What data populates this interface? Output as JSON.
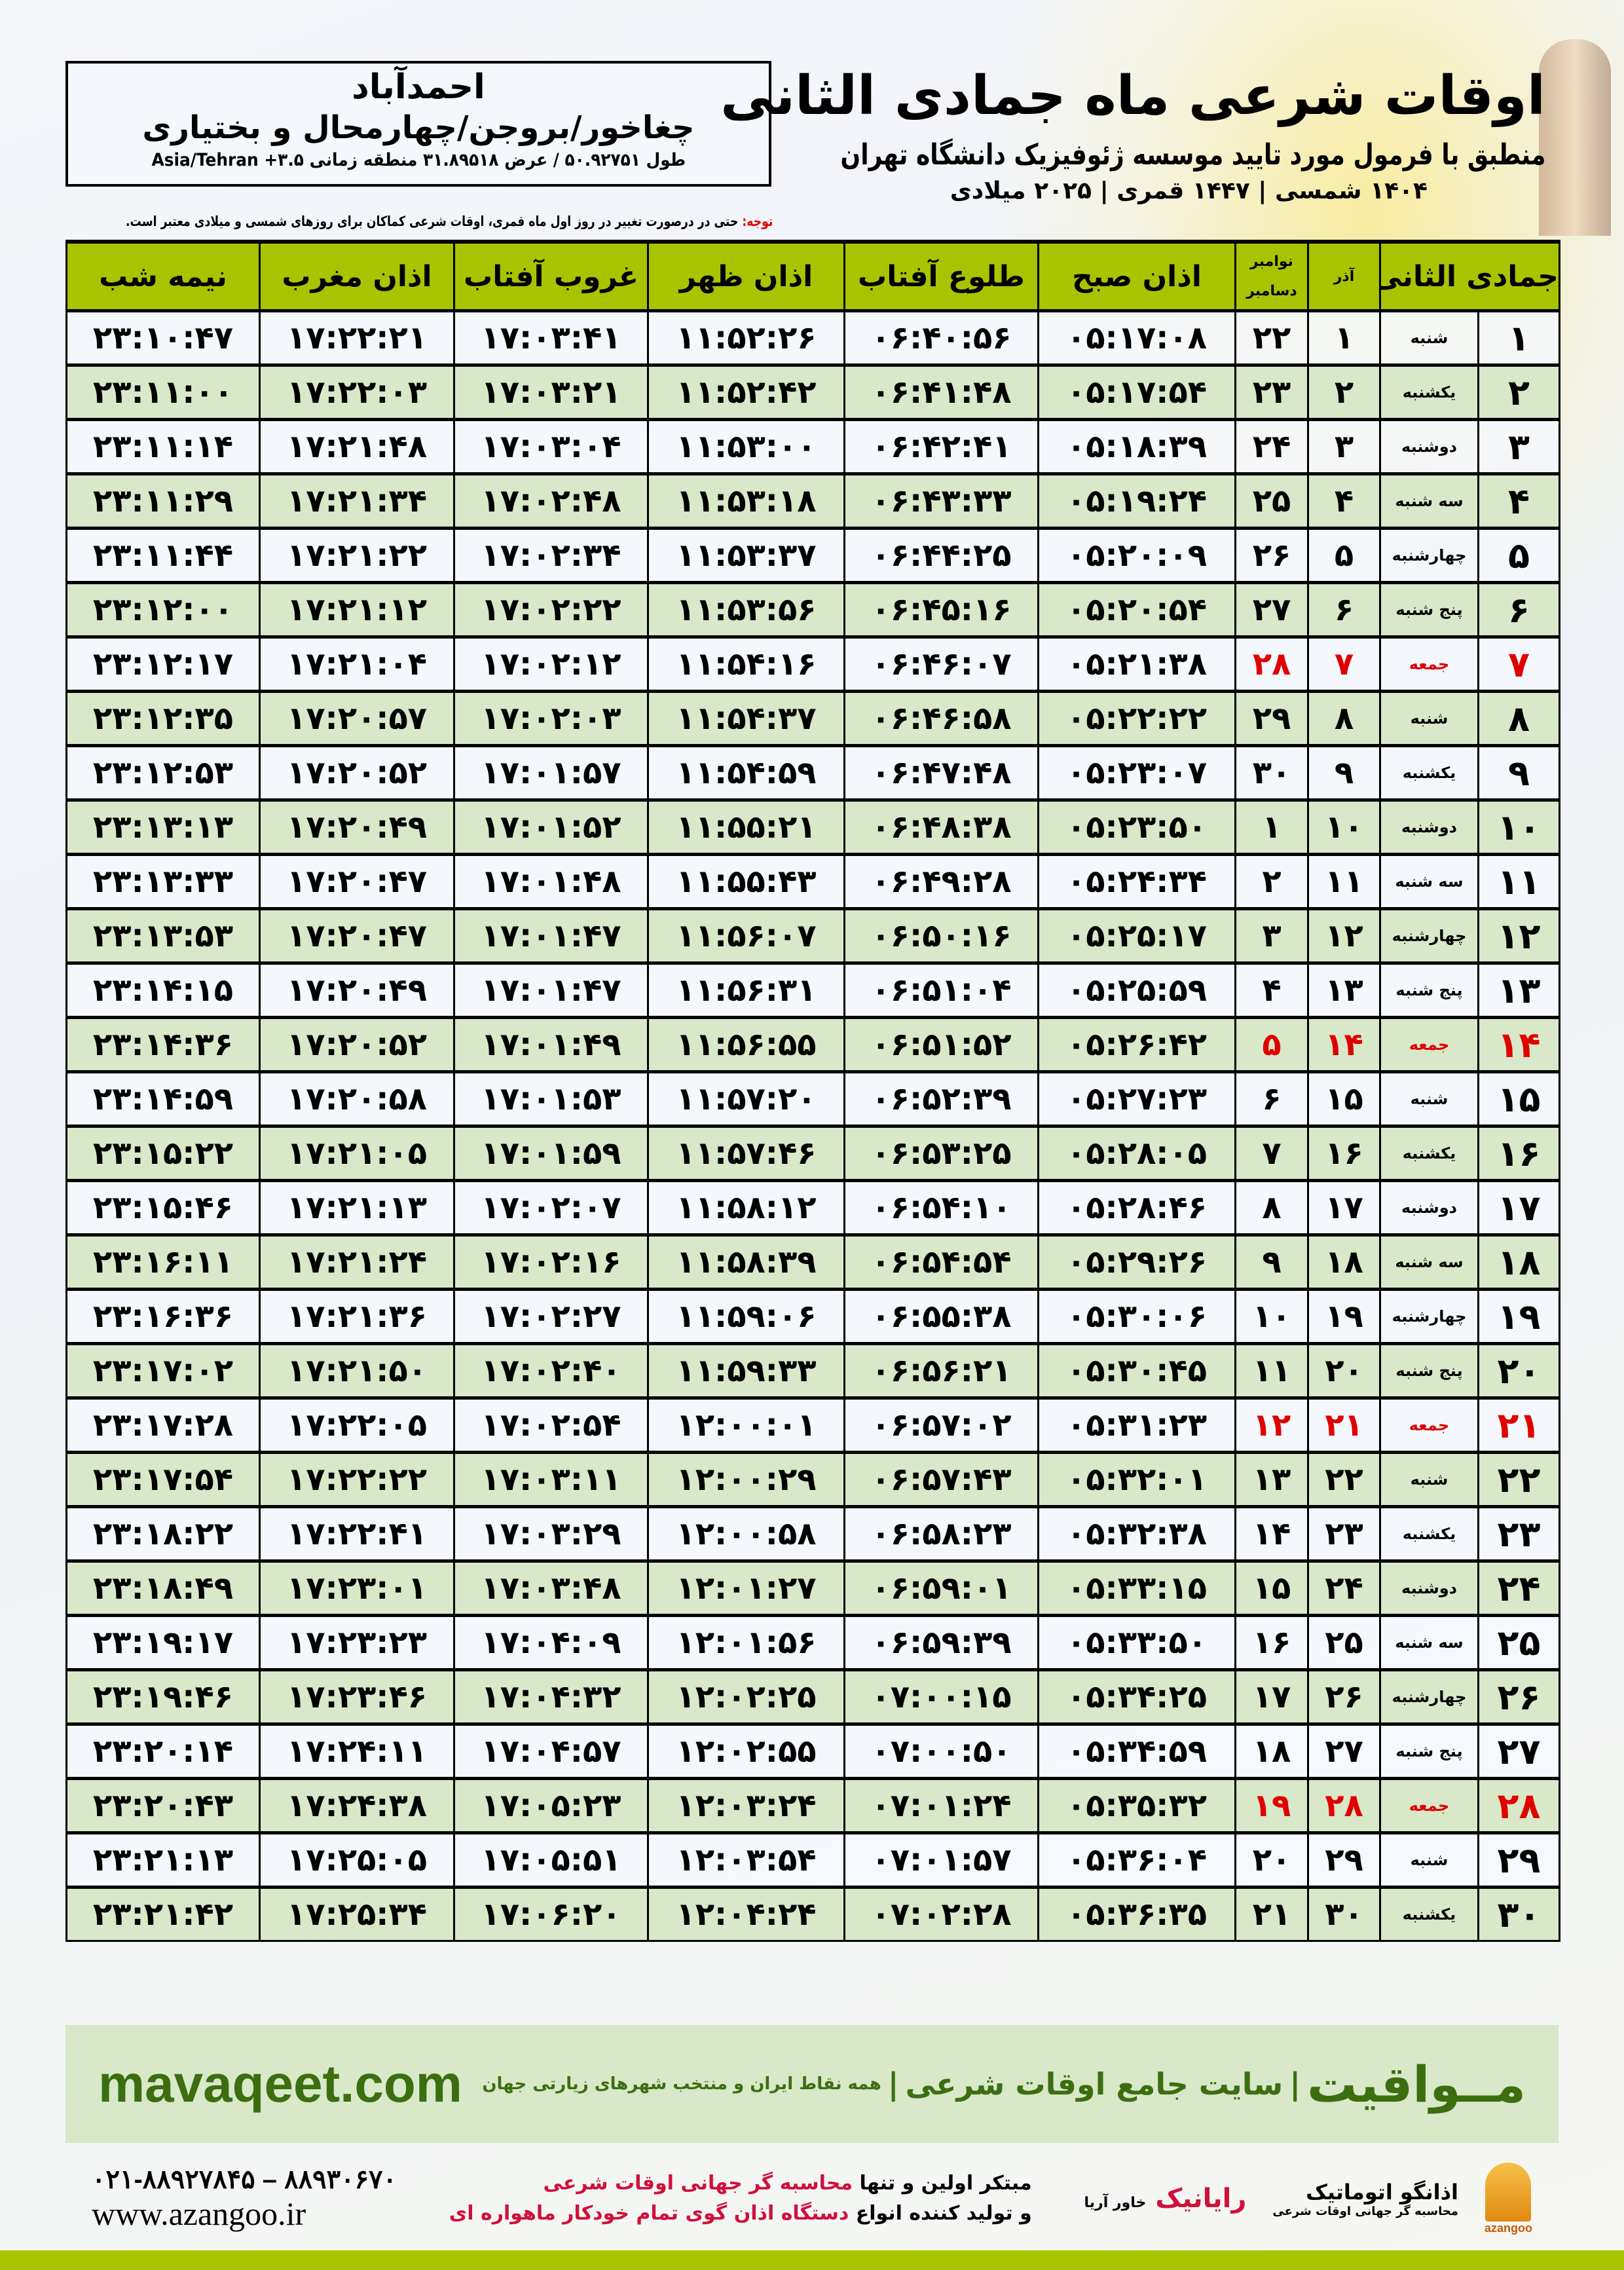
{
  "location": {
    "city": "احمدآباد",
    "region": "چغاخور/بروجن/چهارمحال و بختیاری",
    "coords": "طول ۵۰.۹۲۷۵۱ / عرض ۳۱.۸۹۵۱۸ منطقه زمانی ۳.۵+ Asia/Tehran"
  },
  "header": {
    "title": "اوقات شرعی ماه جمادی الثانی",
    "subtitle": "منطبق با فرمول مورد تایید موسسه ژئوفیزیک دانشگاه تهران",
    "years": "۱۴۰۴ شمسی | ۱۴۴۷ قمری | ۲۰۲۵ میلادی"
  },
  "note": {
    "label": "توجه:",
    "text": " حتی در درصورت تغییر در روز اول ماه قمری، اوقات شرعی کماکان برای روزهای شمسی و میلادی معتبر است."
  },
  "table": {
    "headers": {
      "hijri": "جمادی الثانی",
      "azar": "آذر",
      "gregorian_top": "نوامبر",
      "gregorian_bottom": "دسامبر",
      "fajr": "اذان صبح",
      "sunrise": "طلوع آفتاب",
      "dhuhr": "اذان ظهر",
      "sunset": "غروب آفتاب",
      "maghrib": "اذان مغرب",
      "midnight": "نیمه شب"
    },
    "friday_color": "#e00000",
    "header_color": "#a8c400",
    "rows": [
      [
        "۱",
        "شنبه",
        "۱",
        "۲۲",
        "۰۵:۱۷:۰۸",
        "۰۶:۴۰:۵۶",
        "۱۱:۵۲:۲۶",
        "۱۷:۰۳:۴۱",
        "۱۷:۲۲:۲۱",
        "۲۳:۱۰:۴۷"
      ],
      [
        "۲",
        "یکشنبه",
        "۲",
        "۲۳",
        "۰۵:۱۷:۵۴",
        "۰۶:۴۱:۴۸",
        "۱۱:۵۲:۴۲",
        "۱۷:۰۳:۲۱",
        "۱۷:۲۲:۰۳",
        "۲۳:۱۱:۰۰"
      ],
      [
        "۳",
        "دوشنبه",
        "۳",
        "۲۴",
        "۰۵:۱۸:۳۹",
        "۰۶:۴۲:۴۱",
        "۱۱:۵۳:۰۰",
        "۱۷:۰۳:۰۴",
        "۱۷:۲۱:۴۸",
        "۲۳:۱۱:۱۴"
      ],
      [
        "۴",
        "سه شنبه",
        "۴",
        "۲۵",
        "۰۵:۱۹:۲۴",
        "۰۶:۴۳:۳۳",
        "۱۱:۵۳:۱۸",
        "۱۷:۰۲:۴۸",
        "۱۷:۲۱:۳۴",
        "۲۳:۱۱:۲۹"
      ],
      [
        "۵",
        "چهارشنبه",
        "۵",
        "۲۶",
        "۰۵:۲۰:۰۹",
        "۰۶:۴۴:۲۵",
        "۱۱:۵۳:۳۷",
        "۱۷:۰۲:۳۴",
        "۱۷:۲۱:۲۲",
        "۲۳:۱۱:۴۴"
      ],
      [
        "۶",
        "پنج شنبه",
        "۶",
        "۲۷",
        "۰۵:۲۰:۵۴",
        "۰۶:۴۵:۱۶",
        "۱۱:۵۳:۵۶",
        "۱۷:۰۲:۲۲",
        "۱۷:۲۱:۱۲",
        "۲۳:۱۲:۰۰"
      ],
      [
        "۷",
        "جمعه",
        "۷",
        "۲۸",
        "۰۵:۲۱:۳۸",
        "۰۶:۴۶:۰۷",
        "۱۱:۵۴:۱۶",
        "۱۷:۰۲:۱۲",
        "۱۷:۲۱:۰۴",
        "۲۳:۱۲:۱۷"
      ],
      [
        "۸",
        "شنبه",
        "۸",
        "۲۹",
        "۰۵:۲۲:۲۲",
        "۰۶:۴۶:۵۸",
        "۱۱:۵۴:۳۷",
        "۱۷:۰۲:۰۳",
        "۱۷:۲۰:۵۷",
        "۲۳:۱۲:۳۵"
      ],
      [
        "۹",
        "یکشنبه",
        "۹",
        "۳۰",
        "۰۵:۲۳:۰۷",
        "۰۶:۴۷:۴۸",
        "۱۱:۵۴:۵۹",
        "۱۷:۰۱:۵۷",
        "۱۷:۲۰:۵۲",
        "۲۳:۱۲:۵۳"
      ],
      [
        "۱۰",
        "دوشنبه",
        "۱۰",
        "۱",
        "۰۵:۲۳:۵۰",
        "۰۶:۴۸:۳۸",
        "۱۱:۵۵:۲۱",
        "۱۷:۰۱:۵۲",
        "۱۷:۲۰:۴۹",
        "۲۳:۱۳:۱۳"
      ],
      [
        "۱۱",
        "سه شنبه",
        "۱۱",
        "۲",
        "۰۵:۲۴:۳۴",
        "۰۶:۴۹:۲۸",
        "۱۱:۵۵:۴۳",
        "۱۷:۰۱:۴۸",
        "۱۷:۲۰:۴۷",
        "۲۳:۱۳:۳۳"
      ],
      [
        "۱۲",
        "چهارشنبه",
        "۱۲",
        "۳",
        "۰۵:۲۵:۱۷",
        "۰۶:۵۰:۱۶",
        "۱۱:۵۶:۰۷",
        "۱۷:۰۱:۴۷",
        "۱۷:۲۰:۴۷",
        "۲۳:۱۳:۵۳"
      ],
      [
        "۱۳",
        "پنج شنبه",
        "۱۳",
        "۴",
        "۰۵:۲۵:۵۹",
        "۰۶:۵۱:۰۴",
        "۱۱:۵۶:۳۱",
        "۱۷:۰۱:۴۷",
        "۱۷:۲۰:۴۹",
        "۲۳:۱۴:۱۵"
      ],
      [
        "۱۴",
        "جمعه",
        "۱۴",
        "۵",
        "۰۵:۲۶:۴۲",
        "۰۶:۵۱:۵۲",
        "۱۱:۵۶:۵۵",
        "۱۷:۰۱:۴۹",
        "۱۷:۲۰:۵۲",
        "۲۳:۱۴:۳۶"
      ],
      [
        "۱۵",
        "شنبه",
        "۱۵",
        "۶",
        "۰۵:۲۷:۲۳",
        "۰۶:۵۲:۳۹",
        "۱۱:۵۷:۲۰",
        "۱۷:۰۱:۵۳",
        "۱۷:۲۰:۵۸",
        "۲۳:۱۴:۵۹"
      ],
      [
        "۱۶",
        "یکشنبه",
        "۱۶",
        "۷",
        "۰۵:۲۸:۰۵",
        "۰۶:۵۳:۲۵",
        "۱۱:۵۷:۴۶",
        "۱۷:۰۱:۵۹",
        "۱۷:۲۱:۰۵",
        "۲۳:۱۵:۲۲"
      ],
      [
        "۱۷",
        "دوشنبه",
        "۱۷",
        "۸",
        "۰۵:۲۸:۴۶",
        "۰۶:۵۴:۱۰",
        "۱۱:۵۸:۱۲",
        "۱۷:۰۲:۰۷",
        "۱۷:۲۱:۱۳",
        "۲۳:۱۵:۴۶"
      ],
      [
        "۱۸",
        "سه شنبه",
        "۱۸",
        "۹",
        "۰۵:۲۹:۲۶",
        "۰۶:۵۴:۵۴",
        "۱۱:۵۸:۳۹",
        "۱۷:۰۲:۱۶",
        "۱۷:۲۱:۲۴",
        "۲۳:۱۶:۱۱"
      ],
      [
        "۱۹",
        "چهارشنبه",
        "۱۹",
        "۱۰",
        "۰۵:۳۰:۰۶",
        "۰۶:۵۵:۳۸",
        "۱۱:۵۹:۰۶",
        "۱۷:۰۲:۲۷",
        "۱۷:۲۱:۳۶",
        "۲۳:۱۶:۳۶"
      ],
      [
        "۲۰",
        "پنج شنبه",
        "۲۰",
        "۱۱",
        "۰۵:۳۰:۴۵",
        "۰۶:۵۶:۲۱",
        "۱۱:۵۹:۳۳",
        "۱۷:۰۲:۴۰",
        "۱۷:۲۱:۵۰",
        "۲۳:۱۷:۰۲"
      ],
      [
        "۲۱",
        "جمعه",
        "۲۱",
        "۱۲",
        "۰۵:۳۱:۲۳",
        "۰۶:۵۷:۰۲",
        "۱۲:۰۰:۰۱",
        "۱۷:۰۲:۵۴",
        "۱۷:۲۲:۰۵",
        "۲۳:۱۷:۲۸"
      ],
      [
        "۲۲",
        "شنبه",
        "۲۲",
        "۱۳",
        "۰۵:۳۲:۰۱",
        "۰۶:۵۷:۴۳",
        "۱۲:۰۰:۲۹",
        "۱۷:۰۳:۱۱",
        "۱۷:۲۲:۲۲",
        "۲۳:۱۷:۵۴"
      ],
      [
        "۲۳",
        "یکشنبه",
        "۲۳",
        "۱۴",
        "۰۵:۳۲:۳۸",
        "۰۶:۵۸:۲۳",
        "۱۲:۰۰:۵۸",
        "۱۷:۰۳:۲۹",
        "۱۷:۲۲:۴۱",
        "۲۳:۱۸:۲۲"
      ],
      [
        "۲۴",
        "دوشنبه",
        "۲۴",
        "۱۵",
        "۰۵:۳۳:۱۵",
        "۰۶:۵۹:۰۱",
        "۱۲:۰۱:۲۷",
        "۱۷:۰۳:۴۸",
        "۱۷:۲۳:۰۱",
        "۲۳:۱۸:۴۹"
      ],
      [
        "۲۵",
        "سه شنبه",
        "۲۵",
        "۱۶",
        "۰۵:۳۳:۵۰",
        "۰۶:۵۹:۳۹",
        "۱۲:۰۱:۵۶",
        "۱۷:۰۴:۰۹",
        "۱۷:۲۳:۲۳",
        "۲۳:۱۹:۱۷"
      ],
      [
        "۲۶",
        "چهارشنبه",
        "۲۶",
        "۱۷",
        "۰۵:۳۴:۲۵",
        "۰۷:۰۰:۱۵",
        "۱۲:۰۲:۲۵",
        "۱۷:۰۴:۳۲",
        "۱۷:۲۳:۴۶",
        "۲۳:۱۹:۴۶"
      ],
      [
        "۲۷",
        "پنج شنبه",
        "۲۷",
        "۱۸",
        "۰۵:۳۴:۵۹",
        "۰۷:۰۰:۵۰",
        "۱۲:۰۲:۵۵",
        "۱۷:۰۴:۵۷",
        "۱۷:۲۴:۱۱",
        "۲۳:۲۰:۱۴"
      ],
      [
        "۲۸",
        "جمعه",
        "۲۸",
        "۱۹",
        "۰۵:۳۵:۳۲",
        "۰۷:۰۱:۲۴",
        "۱۲:۰۳:۲۴",
        "۱۷:۰۵:۲۳",
        "۱۷:۲۴:۳۸",
        "۲۳:۲۰:۴۳"
      ],
      [
        "۲۹",
        "شنبه",
        "۲۹",
        "۲۰",
        "۰۵:۳۶:۰۴",
        "۰۷:۰۱:۵۷",
        "۱۲:۰۳:۵۴",
        "۱۷:۰۵:۵۱",
        "۱۷:۲۵:۰۵",
        "۲۳:۲۱:۱۳"
      ],
      [
        "۳۰",
        "یکشنبه",
        "۳۰",
        "۲۱",
        "۰۵:۳۶:۳۵",
        "۰۷:۰۲:۲۸",
        "۱۲:۰۴:۲۴",
        "۱۷:۰۶:۲۰",
        "۱۷:۲۵:۳۴",
        "۲۳:۲۱:۴۲"
      ]
    ]
  },
  "footer": {
    "site": "mavaqeet.com",
    "brand_name": "مــواقیت",
    "brand_tagline": "سایت جامع اوقات شرعی",
    "brand_sub": "همه نقاط ایران و منتخب شهرهای زیارتی جهان",
    "phones": "۰۲۱-۸۸۹۲۷۸۴۵ – ۸۸۹۳۰۶۷۰",
    "web": "www.azangoo.ir",
    "promo_1a": "مبتکر اولین و تنها ",
    "promo_1b": "محاسبه گر جهانی اوقات شرعی",
    "promo_2a": "و تولید کننده انواع ",
    "promo_2b": "دستگاه اذان گوی تمام خودکار ماهواره ای",
    "logo_rayanik": "رایانیک",
    "logo_rayanik_sub": "خاور آریا",
    "logo_azangoo": "اذانگو اتوماتیک",
    "logo_azangoo_sub": "محاسبه گر جهانی اوقات شرعی",
    "logo_azangoo_en": "azangoo",
    "brand_color": "#3c6e10",
    "accent_red": "#d0103a"
  }
}
